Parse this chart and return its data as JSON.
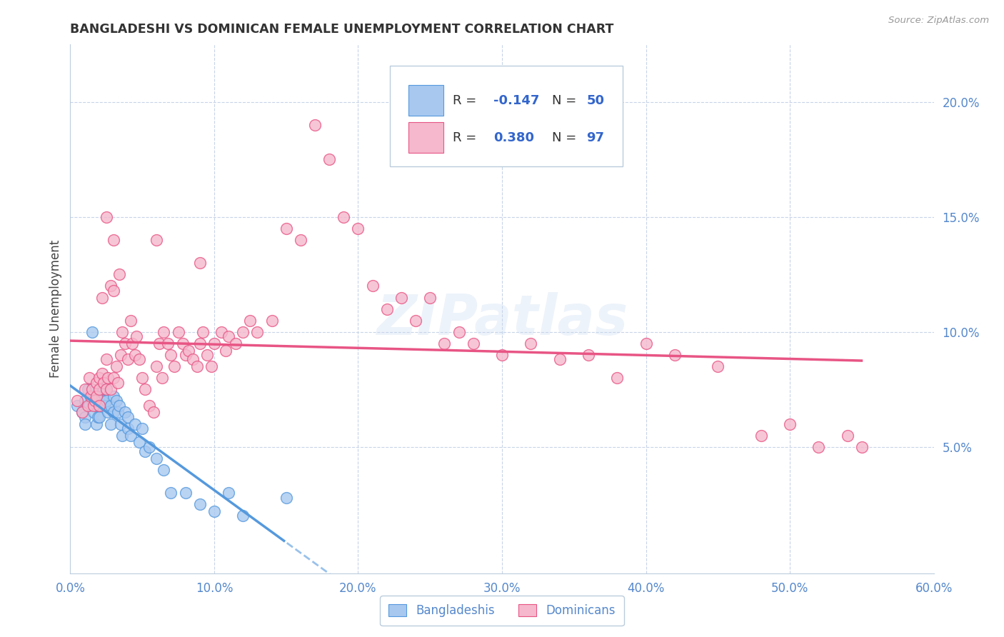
{
  "title": "BANGLADESHI VS DOMINICAN FEMALE UNEMPLOYMENT CORRELATION CHART",
  "source": "Source: ZipAtlas.com",
  "ylabel": "Female Unemployment",
  "right_yticks": [
    "5.0%",
    "10.0%",
    "15.0%",
    "20.0%"
  ],
  "right_ytick_vals": [
    0.05,
    0.1,
    0.15,
    0.2
  ],
  "xlim": [
    0.0,
    0.6
  ],
  "ylim": [
    -0.005,
    0.225
  ],
  "watermark": "ZIPatlas",
  "blue_color": "#a8c8f0",
  "pink_color": "#f5b8cc",
  "blue_line_color": "#5599dd",
  "pink_line_color": "#e85585",
  "bg_color": "#ffffff",
  "grid_color": "#c8d4e8",
  "bangladeshi_x": [
    0.005,
    0.008,
    0.01,
    0.01,
    0.01,
    0.012,
    0.013,
    0.014,
    0.015,
    0.015,
    0.016,
    0.018,
    0.018,
    0.019,
    0.02,
    0.02,
    0.02,
    0.022,
    0.022,
    0.024,
    0.025,
    0.025,
    0.026,
    0.028,
    0.028,
    0.03,
    0.03,
    0.032,
    0.033,
    0.034,
    0.035,
    0.036,
    0.038,
    0.04,
    0.04,
    0.042,
    0.045,
    0.048,
    0.05,
    0.052,
    0.055,
    0.06,
    0.065,
    0.07,
    0.08,
    0.09,
    0.1,
    0.11,
    0.12,
    0.15
  ],
  "bangladeshi_y": [
    0.068,
    0.065,
    0.07,
    0.063,
    0.06,
    0.075,
    0.068,
    0.072,
    0.07,
    0.1,
    0.065,
    0.068,
    0.06,
    0.063,
    0.072,
    0.068,
    0.063,
    0.075,
    0.07,
    0.068,
    0.075,
    0.07,
    0.065,
    0.068,
    0.06,
    0.072,
    0.065,
    0.07,
    0.065,
    0.068,
    0.06,
    0.055,
    0.065,
    0.063,
    0.058,
    0.055,
    0.06,
    0.052,
    0.058,
    0.048,
    0.05,
    0.045,
    0.04,
    0.03,
    0.03,
    0.025,
    0.022,
    0.03,
    0.02,
    0.028
  ],
  "dominican_x": [
    0.005,
    0.008,
    0.01,
    0.012,
    0.013,
    0.014,
    0.015,
    0.016,
    0.017,
    0.018,
    0.018,
    0.02,
    0.02,
    0.02,
    0.022,
    0.022,
    0.023,
    0.025,
    0.025,
    0.026,
    0.028,
    0.028,
    0.03,
    0.03,
    0.032,
    0.033,
    0.034,
    0.035,
    0.036,
    0.038,
    0.04,
    0.042,
    0.043,
    0.045,
    0.046,
    0.048,
    0.05,
    0.052,
    0.055,
    0.058,
    0.06,
    0.062,
    0.064,
    0.065,
    0.068,
    0.07,
    0.072,
    0.075,
    0.078,
    0.08,
    0.082,
    0.085,
    0.088,
    0.09,
    0.092,
    0.095,
    0.098,
    0.1,
    0.105,
    0.108,
    0.11,
    0.115,
    0.12,
    0.125,
    0.13,
    0.14,
    0.15,
    0.16,
    0.17,
    0.18,
    0.19,
    0.2,
    0.21,
    0.22,
    0.23,
    0.24,
    0.25,
    0.26,
    0.27,
    0.28,
    0.3,
    0.32,
    0.34,
    0.36,
    0.38,
    0.4,
    0.42,
    0.45,
    0.48,
    0.5,
    0.52,
    0.54,
    0.55,
    0.03,
    0.025,
    0.06,
    0.09
  ],
  "dominican_y": [
    0.07,
    0.065,
    0.075,
    0.068,
    0.08,
    0.072,
    0.075,
    0.068,
    0.07,
    0.078,
    0.072,
    0.08,
    0.075,
    0.068,
    0.082,
    0.115,
    0.078,
    0.075,
    0.088,
    0.08,
    0.12,
    0.075,
    0.08,
    0.118,
    0.085,
    0.078,
    0.125,
    0.09,
    0.1,
    0.095,
    0.088,
    0.105,
    0.095,
    0.09,
    0.098,
    0.088,
    0.08,
    0.075,
    0.068,
    0.065,
    0.085,
    0.095,
    0.08,
    0.1,
    0.095,
    0.09,
    0.085,
    0.1,
    0.095,
    0.09,
    0.092,
    0.088,
    0.085,
    0.095,
    0.1,
    0.09,
    0.085,
    0.095,
    0.1,
    0.092,
    0.098,
    0.095,
    0.1,
    0.105,
    0.1,
    0.105,
    0.145,
    0.14,
    0.19,
    0.175,
    0.15,
    0.145,
    0.12,
    0.11,
    0.115,
    0.105,
    0.115,
    0.095,
    0.1,
    0.095,
    0.09,
    0.095,
    0.088,
    0.09,
    0.08,
    0.095,
    0.09,
    0.085,
    0.055,
    0.06,
    0.05,
    0.055,
    0.05,
    0.14,
    0.15,
    0.14,
    0.13
  ]
}
